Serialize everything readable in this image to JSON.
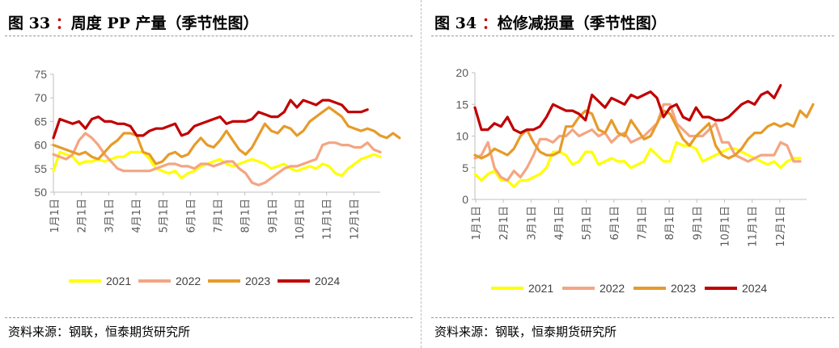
{
  "left": {
    "title_num": "图 33",
    "title_colon": "：",
    "title_text": "周度 PP 产量（季节性图）",
    "source": "资料来源：钢联，恒泰期货研究所",
    "chart_data": {
      "type": "line",
      "title": "周度 PP 产量（季节性图）",
      "ylim": [
        50,
        75
      ],
      "yticks": [
        50,
        55,
        60,
        65,
        70,
        75
      ],
      "xlabels": [
        "1月1日",
        "2月1日",
        "3月1日",
        "4月1日",
        "5月1日",
        "6月1日",
        "7月1日",
        "8月1日",
        "9月1日",
        "10月1日",
        "11月1日",
        "12月1日"
      ],
      "weeks": 52,
      "series": [
        {
          "name": "2021",
          "color": "#ffff00",
          "values": [
            54.5,
            58.5,
            58,
            57.5,
            56,
            56.5,
            56.5,
            57,
            56.5,
            57,
            57.5,
            57.5,
            58.5,
            58.5,
            58.5,
            57,
            55,
            54.5,
            54,
            54.5,
            53,
            54,
            54.5,
            55.5,
            56,
            56.5,
            57,
            56,
            55.5,
            56,
            56.5,
            57,
            56.5,
            56,
            55,
            55.5,
            56,
            55,
            54.5,
            55,
            55.5,
            55,
            56,
            55.5,
            54,
            53.5,
            55,
            56,
            57,
            57.5,
            58,
            57.5
          ]
        },
        {
          "name": "2022",
          "color": "#f4a582",
          "values": [
            58,
            57.5,
            57,
            58,
            61,
            62.5,
            61.5,
            60,
            58,
            56.5,
            55,
            54.5,
            54.5,
            54.5,
            54.5,
            54.5,
            55,
            55.5,
            56,
            56,
            55.5,
            55.5,
            55,
            56,
            56,
            55.5,
            56,
            56.5,
            56.5,
            55,
            54,
            52,
            51.5,
            52,
            53,
            54,
            55,
            55.5,
            55.5,
            56,
            56.5,
            57,
            60,
            60.5,
            60.5,
            60,
            60,
            59.5,
            59.5,
            60.5,
            59,
            58.5
          ]
        },
        {
          "name": "2023",
          "color": "#e69b2a",
          "values": [
            60,
            59.5,
            59,
            58.5,
            58,
            58.5,
            57.5,
            57,
            58.5,
            60,
            61,
            62.5,
            62.5,
            62,
            58.5,
            58,
            56,
            56.5,
            58,
            58.5,
            57.5,
            58,
            60,
            61.5,
            60,
            59.5,
            61,
            63,
            61,
            59,
            58,
            59.5,
            62,
            64.5,
            63,
            62.5,
            64,
            63.5,
            62,
            63,
            65,
            66,
            67,
            68,
            67,
            66,
            64,
            63.5,
            63,
            63.5,
            63,
            62,
            61.5,
            62.5,
            61.5
          ]
        },
        {
          "name": "2024",
          "color": "#c00000",
          "values": [
            61.5,
            65.5,
            65,
            64.5,
            65,
            63.5,
            65.5,
            66,
            65,
            65,
            64.5,
            64.5,
            64,
            62,
            62,
            63,
            63.5,
            63.5,
            64,
            64.5,
            62,
            62.5,
            64,
            64.5,
            65,
            65.5,
            66,
            64.5,
            65,
            65,
            65,
            65.5,
            67,
            66.5,
            66,
            66,
            67,
            69.5,
            68,
            69.5,
            69,
            68.5,
            69.5,
            69.5,
            69,
            68.5,
            67,
            67,
            67,
            67.5
          ]
        }
      ]
    }
  },
  "right": {
    "title_num": "图 34",
    "title_colon": "：",
    "title_text": "检修减损量（季节性图）",
    "source": "资料来源：钢联，恒泰期货研究所",
    "chart_data": {
      "type": "line",
      "title": "检修减损量（季节性图）",
      "ylim": [
        0,
        20
      ],
      "yticks": [
        0,
        5,
        10,
        15,
        20
      ],
      "xlabels": [
        "1月1日",
        "2月1日",
        "3月1日",
        "4月1日",
        "5月1日",
        "6月1日",
        "7月1日",
        "8月1日",
        "9月1日",
        "10月1日",
        "11月1日",
        "12月1日"
      ],
      "weeks": 52,
      "series": [
        {
          "name": "2021",
          "color": "#ffff00",
          "values": [
            4,
            3,
            4,
            4.5,
            3,
            3,
            2,
            3,
            3,
            3.5,
            4,
            5,
            7.5,
            7.5,
            7,
            5.5,
            6,
            7.5,
            7.5,
            5.5,
            6,
            6.5,
            6,
            6,
            5,
            5.5,
            6,
            8,
            7,
            6,
            6,
            9,
            8.5,
            8.5,
            8,
            6,
            6.5,
            7,
            7.5,
            8,
            8,
            7.5,
            7,
            6.5,
            6,
            5.5,
            6,
            5,
            6,
            6.5,
            6.5
          ]
        },
        {
          "name": "2022",
          "color": "#f4a582",
          "values": [
            6.5,
            7,
            9,
            5,
            3.5,
            3,
            4.5,
            3.5,
            5,
            7,
            9.5,
            9.5,
            9,
            10,
            10,
            11,
            10,
            10.5,
            11,
            10,
            10.5,
            9,
            10,
            10.5,
            9,
            9.5,
            10,
            11,
            12,
            15,
            15,
            12,
            11,
            10,
            10,
            10,
            11,
            12,
            9,
            9,
            7,
            6.5,
            6,
            6.5,
            7,
            7,
            7,
            9,
            8.5,
            6,
            6
          ]
        },
        {
          "name": "2023",
          "color": "#e69b2a",
          "values": [
            7,
            6.5,
            7,
            8,
            7.5,
            7,
            8,
            10,
            11,
            9,
            7.5,
            7,
            7,
            7.5,
            11.5,
            11.5,
            13,
            14,
            13.5,
            11,
            10.5,
            12.5,
            10.5,
            10,
            12.5,
            11,
            9.5,
            10,
            12,
            14,
            13.5,
            11.5,
            9.5,
            8.5,
            10,
            11,
            12,
            8.5,
            7,
            6.5,
            7,
            8,
            9.5,
            10.5,
            10.5,
            11.5,
            12,
            11.5,
            12,
            11.5,
            14,
            13,
            15
          ]
        },
        {
          "name": "2024",
          "color": "#c00000",
          "values": [
            14.5,
            11,
            11,
            12,
            11.5,
            13,
            11,
            10.5,
            11,
            11,
            11.5,
            13,
            15,
            14.5,
            14,
            14,
            13.5,
            12.5,
            16.5,
            15.5,
            14.5,
            16,
            15.5,
            15,
            16.5,
            16,
            16.5,
            17,
            16,
            13,
            14.5,
            15,
            13,
            12.5,
            14.5,
            13,
            13,
            12.5,
            12.5,
            13,
            14,
            15,
            15.5,
            15,
            16.5,
            17,
            16,
            18
          ]
        }
      ]
    }
  }
}
